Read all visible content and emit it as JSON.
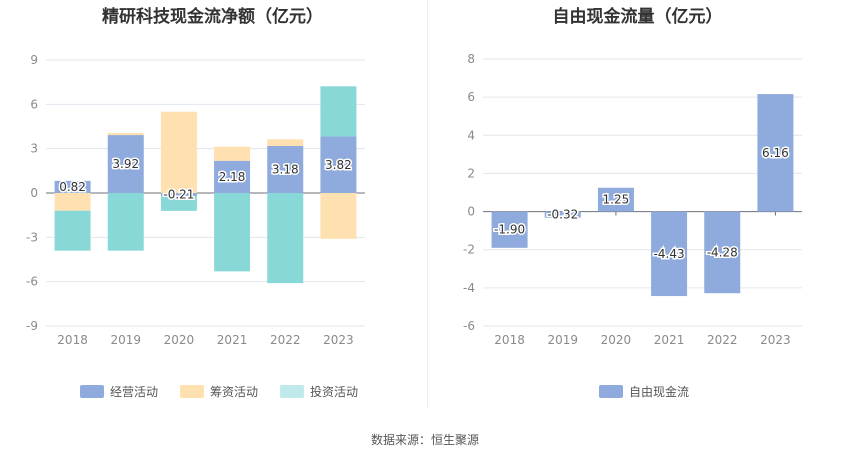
{
  "source": "数据来源：恒生聚源",
  "chart_data": [
    {
      "type": "bar",
      "stacked": true,
      "title": "精研科技现金流净额（亿元）",
      "categories": [
        "2018",
        "2019",
        "2020",
        "2021",
        "2022",
        "2023"
      ],
      "ylim": [
        -9,
        9
      ],
      "yticks": [
        9,
        6,
        3,
        0,
        -3,
        -6,
        -9
      ],
      "grid": true,
      "legend_position": "bottom",
      "series": [
        {
          "name": "经营活动",
          "color": "#8faadc",
          "values": [
            0.82,
            3.92,
            -0.21,
            2.18,
            3.18,
            3.82
          ],
          "labels": [
            "0.82",
            "3.92",
            "-0.21",
            "2.18",
            "3.18",
            "3.82"
          ]
        },
        {
          "name": "筹资活动",
          "color": "#ffe0b0",
          "values": [
            -1.2,
            0.15,
            5.5,
            0.95,
            0.45,
            -3.1
          ]
        },
        {
          "name": "投资活动",
          "color": "#88d8d8",
          "values": [
            -2.7,
            -3.9,
            -1.0,
            -5.3,
            -6.1,
            3.4
          ]
        }
      ]
    },
    {
      "type": "bar",
      "title": "自由现金流量（亿元）",
      "categories": [
        "2018",
        "2019",
        "2020",
        "2021",
        "2022",
        "2023"
      ],
      "ylim": [
        -6,
        8
      ],
      "yticks": [
        8,
        6,
        4,
        2,
        0,
        -2,
        -4,
        -6
      ],
      "grid": true,
      "legend_position": "bottom",
      "series": [
        {
          "name": "自由现金流",
          "color": "#8faadc",
          "values": [
            -1.9,
            -0.32,
            1.25,
            -4.43,
            -4.28,
            6.16
          ],
          "labels": [
            "-1.90",
            "-0.32",
            "1.25",
            "-4.43",
            "-4.28",
            "6.16"
          ]
        }
      ]
    }
  ]
}
